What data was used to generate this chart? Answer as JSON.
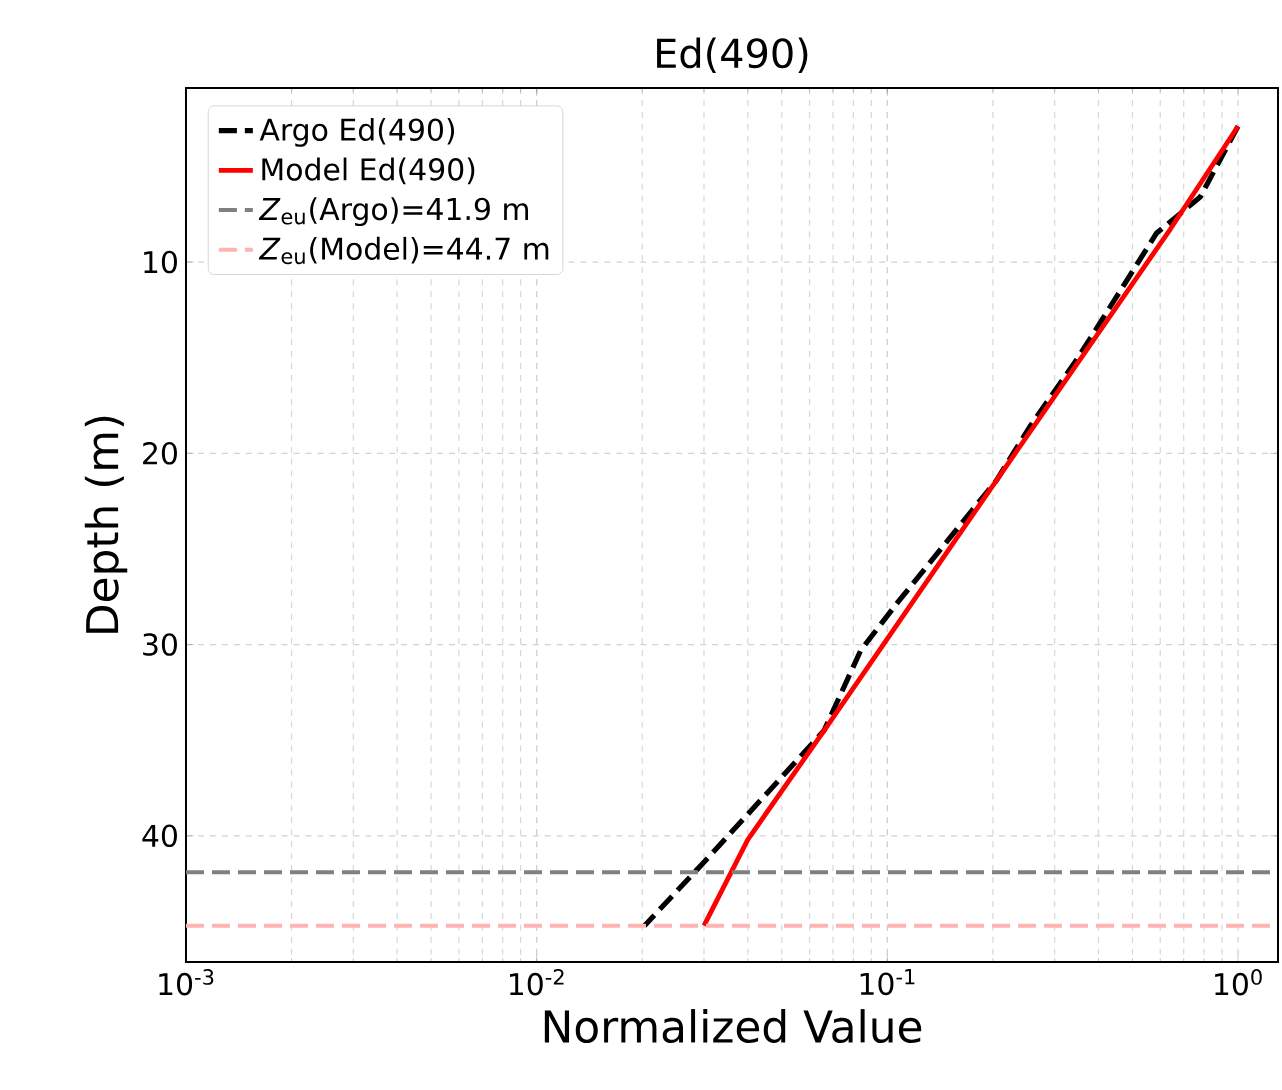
{
  "chart_data": {
    "type": "line",
    "title": "Ed(490)",
    "xlabel": "Normalized Value",
    "ylabel": "Depth (m)",
    "log": "x",
    "grid": true,
    "legend": "top left",
    "xlim": [
      0.001,
      1.3
    ],
    "ylim": [
      46.6,
      0.9
    ],
    "xticks": [
      {
        "value": 0.001,
        "label": "10$^{-3}$"
      },
      {
        "value": 0.01,
        "label": "10$^{-2}$"
      },
      {
        "value": 0.1,
        "label": "10$^{-1}$"
      },
      {
        "value": 1,
        "label": "10$^{0}$"
      }
    ],
    "yticks": [
      10,
      20,
      30,
      40
    ],
    "series": [
      {
        "name": "Argo Ed(490)",
        "color": "#000000",
        "line_style": "dashed",
        "x": [
          1.0,
          0.78,
          0.585,
          0.41,
          0.347,
          0.255,
          0.205,
          0.107,
          0.084,
          0.066,
          0.031,
          0.0203
        ],
        "values": [
          2.9,
          6.6,
          8.5,
          13.0,
          15.1,
          18.6,
          21.4,
          27.8,
          30.3,
          34.5,
          41.1,
          44.7
        ]
      },
      {
        "name": "Model Ed(490)",
        "color": "#ff0000",
        "line_style": "solid",
        "x": [
          1.0,
          0.64,
          0.205,
          0.066,
          0.04,
          0.03
        ],
        "values": [
          2.9,
          8.3,
          21.4,
          34.5,
          40.2,
          44.7
        ]
      }
    ],
    "ref_lines": [
      {
        "axis": "y",
        "value": 41.9,
        "label": "*Z*$_{eu}$(Argo)=41.9 m",
        "color": "#808080",
        "line_style": "dashed"
      },
      {
        "axis": "y",
        "value": 44.7,
        "label": "*Z*$_{eu}$(Model)=44.7 m",
        "color": "#ffb3b3",
        "line_style": "dashed"
      }
    ]
  }
}
